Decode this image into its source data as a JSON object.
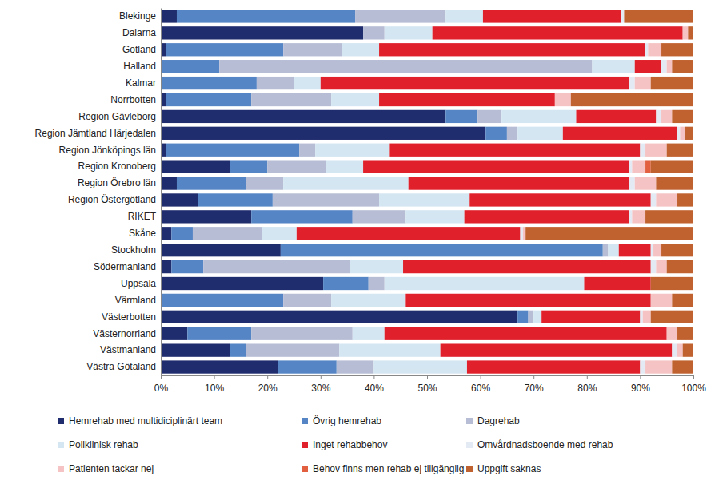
{
  "chart_data": {
    "type": "bar",
    "orientation": "horizontal",
    "stacked": true,
    "grid": false,
    "legend": "bottom",
    "categories": [
      "Blekinge",
      "Dalarna",
      "Gotland",
      "Halland",
      "Kalmar",
      "Norrbotten",
      "Region Gävleborg",
      "Region Jämtland Härjedalen",
      "Region Jönköpings län",
      "Region Kronoberg",
      "Region Örebro län",
      "Region Östergötland",
      "RIKET",
      "Skåne",
      "Stockholm",
      "Södermanland",
      "Uppsala",
      "Värmland",
      "Västerbotten",
      "Västernorrland",
      "Västmanland",
      "Västra Götaland"
    ],
    "xlim": [
      0,
      100
    ],
    "xticks": [
      {
        "value": 0,
        "label": "0%"
      },
      {
        "value": 10,
        "label": "10%"
      },
      {
        "value": 20,
        "label": "20%"
      },
      {
        "value": 30,
        "label": "30%"
      },
      {
        "value": 40,
        "label": "40%"
      },
      {
        "value": 50,
        "label": "50%"
      },
      {
        "value": 60,
        "label": "60%"
      },
      {
        "value": 70,
        "label": "70%"
      },
      {
        "value": 80,
        "label": "80%"
      },
      {
        "value": 90,
        "label": "90%"
      },
      {
        "value": 100,
        "label": "100%"
      }
    ],
    "series": [
      {
        "name": "Hemrehab med multidiciplinärt team",
        "color": "#1f2c6d",
        "values": [
          3,
          38,
          1,
          0,
          0,
          1,
          53.5,
          61,
          1,
          13,
          3,
          7,
          17,
          2,
          22.5,
          2,
          30.5,
          0,
          67,
          5,
          13,
          22
        ]
      },
      {
        "name": "Övrig hemrehab",
        "color": "#5585c5",
        "values": [
          33.5,
          0,
          22,
          11,
          18,
          16,
          6,
          4,
          25,
          7,
          13,
          14,
          19,
          4,
          60.5,
          6,
          8.5,
          23,
          2,
          12,
          3,
          11
        ]
      },
      {
        "name": "Dagrehab",
        "color": "#b6bdd5",
        "values": [
          17,
          4,
          11,
          70,
          7,
          15,
          4.5,
          2,
          3,
          11,
          7,
          20,
          10,
          13,
          1,
          27.5,
          3,
          9,
          1,
          19,
          17.5,
          7
        ]
      },
      {
        "name": "Poliklinisk rehab",
        "color": "#d3e6f1",
        "values": [
          7,
          9,
          7,
          8,
          5,
          9,
          14,
          8.5,
          14,
          7,
          23.5,
          17,
          11,
          6.5,
          2,
          10,
          37.5,
          14,
          1.5,
          6,
          19,
          17.5
        ]
      },
      {
        "name": "Inget rehabbehov",
        "color": "#e0202b",
        "values": [
          26,
          47,
          50,
          5,
          58,
          33,
          15,
          21.5,
          47,
          50,
          41.5,
          34,
          31,
          42,
          6,
          46.5,
          12.5,
          46,
          18.5,
          53,
          43.5,
          32.5
        ]
      },
      {
        "name": "Omvårdnadsboende med rehab",
        "color": "#e3eaf3",
        "values": [
          0.5,
          0,
          0.5,
          1,
          1,
          0,
          1,
          0.5,
          1,
          0.5,
          1,
          1,
          0.5,
          0.5,
          0.5,
          1,
          0,
          0,
          0.5,
          0,
          1,
          1
        ]
      },
      {
        "name": "Patienten tackar nej",
        "color": "#f5c3c3",
        "values": [
          0,
          1,
          2.5,
          1,
          3,
          3,
          2,
          1,
          4,
          2.5,
          4,
          4,
          2.5,
          0.5,
          1.5,
          2,
          0,
          4,
          1.5,
          2,
          1,
          5
        ]
      },
      {
        "name": "Behov finns men rehab ej tillgänglig",
        "color": "#e2603f",
        "values": [
          0,
          0,
          0,
          0,
          0,
          0,
          0,
          0,
          0,
          1,
          0,
          0,
          0,
          0,
          0,
          0,
          0,
          0,
          0,
          0,
          0,
          0
        ]
      },
      {
        "name": "Uppgift saknas",
        "color": "#c0622f",
        "values": [
          13,
          1,
          6,
          4,
          8,
          23,
          4,
          1.5,
          5,
          8,
          7,
          3,
          9,
          31.5,
          6,
          5,
          8,
          4,
          8,
          3,
          2,
          4
        ]
      }
    ]
  }
}
